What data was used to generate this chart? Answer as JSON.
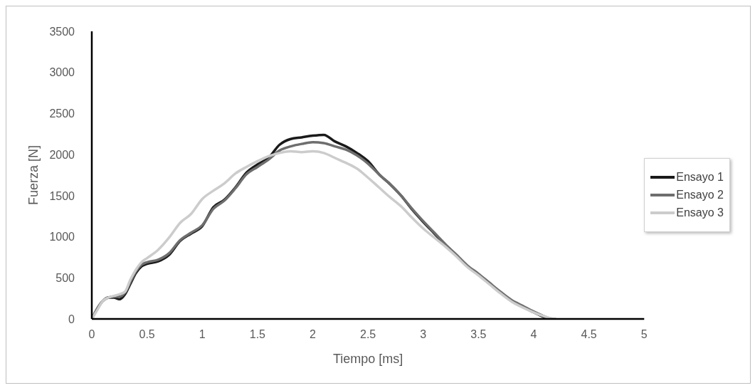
{
  "chart_data": {
    "type": "line",
    "xlabel": "Tiempo [ms]",
    "ylabel": "Fuerza [N]",
    "x": [
      0,
      0.05,
      0.1,
      0.15,
      0.2,
      0.25,
      0.3,
      0.35,
      0.4,
      0.45,
      0.5,
      0.6,
      0.7,
      0.8,
      0.9,
      1.0,
      1.1,
      1.2,
      1.3,
      1.4,
      1.5,
      1.6,
      1.7,
      1.8,
      1.9,
      2.0,
      2.1,
      2.2,
      2.3,
      2.4,
      2.5,
      2.6,
      2.7,
      2.8,
      2.9,
      3.0,
      3.1,
      3.2,
      3.3,
      3.4,
      3.5,
      3.6,
      3.7,
      3.8,
      3.9,
      4.0,
      4.1,
      4.15,
      4.2
    ],
    "series": [
      {
        "name": "Ensayo 1",
        "color": "#1a1a1a",
        "values": [
          0,
          120,
          220,
          260,
          260,
          240,
          300,
          430,
          560,
          640,
          670,
          700,
          780,
          950,
          1040,
          1130,
          1360,
          1450,
          1600,
          1780,
          1880,
          1960,
          2120,
          2190,
          2210,
          2230,
          2240,
          2160,
          2100,
          2020,
          1920,
          1760,
          1640,
          1500,
          1330,
          1180,
          1040,
          900,
          780,
          640,
          540,
          430,
          320,
          220,
          150,
          80,
          20,
          0,
          null
        ]
      },
      {
        "name": "Ensayo 2",
        "color": "#6e6e6e",
        "values": [
          0,
          130,
          220,
          260,
          270,
          270,
          320,
          450,
          580,
          660,
          690,
          720,
          800,
          960,
          1050,
          1140,
          1340,
          1440,
          1590,
          1760,
          1850,
          1940,
          2050,
          2100,
          2130,
          2150,
          2140,
          2100,
          2060,
          1990,
          1890,
          1760,
          1640,
          1500,
          1340,
          1190,
          1050,
          910,
          780,
          650,
          550,
          440,
          330,
          230,
          160,
          90,
          30,
          5,
          0
        ]
      },
      {
        "name": "Ensayo 3",
        "color": "#cccccc",
        "values": [
          0,
          110,
          220,
          260,
          280,
          300,
          330,
          480,
          600,
          690,
          740,
          840,
          990,
          1170,
          1280,
          1460,
          1560,
          1650,
          1770,
          1850,
          1920,
          1980,
          2020,
          2040,
          2030,
          2040,
          2020,
          1960,
          1900,
          1830,
          1720,
          1600,
          1480,
          1370,
          1230,
          1100,
          990,
          880,
          760,
          630,
          530,
          420,
          310,
          210,
          140,
          80,
          30,
          10,
          0
        ]
      }
    ],
    "xlim": [
      0,
      5
    ],
    "xticks": [
      0,
      0.5,
      1,
      1.5,
      2,
      2.5,
      3,
      3.5,
      4,
      4.5,
      5
    ],
    "ylim": [
      0,
      3500
    ],
    "yticks": [
      0,
      500,
      1000,
      1500,
      2000,
      2500,
      3000,
      3500
    ],
    "grid": false,
    "legend": "right",
    "marker": "none",
    "line_style": "solid"
  }
}
